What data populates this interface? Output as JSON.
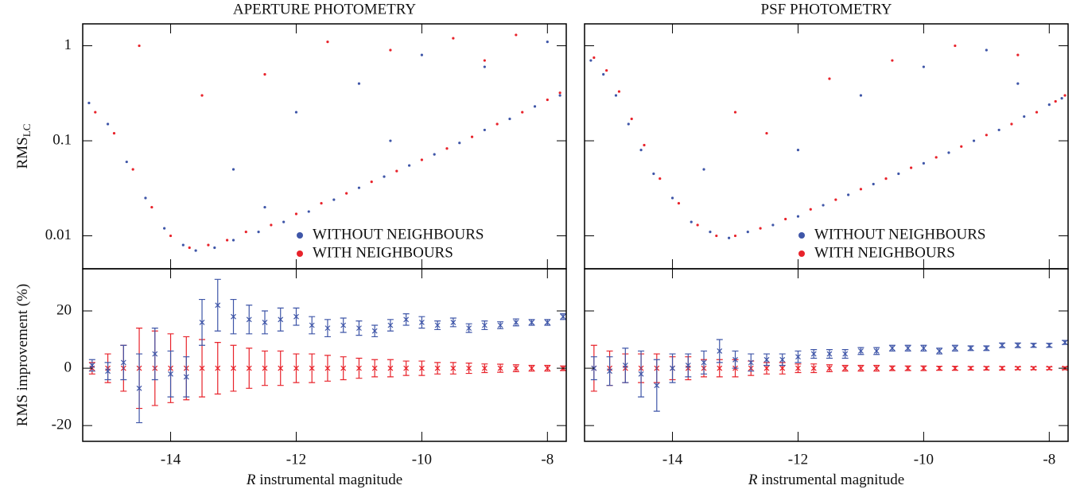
{
  "chart_data": [
    {
      "type": "scatter",
      "title": "APERTURE PHOTOMETRY",
      "y_label": "RMS",
      "y_label_subscript": "LC",
      "log_y": true,
      "xlim": [
        -15.4,
        -7.7
      ],
      "ylim": [
        0.0045,
        1.7
      ],
      "xticks": [
        -14,
        -12,
        -10,
        -8
      ],
      "yticks": [
        1,
        0.1,
        0.01
      ],
      "xtick_labels": false,
      "legend": "lower right",
      "series": [
        {
          "name": "WITHOUT NEIGHBOURS",
          "color": "#3f56a8",
          "x": [
            -15.3,
            -15.0,
            -14.7,
            -14.4,
            -14.1,
            -13.8,
            -13.6,
            -13.3,
            -13.0,
            -12.6,
            -12.2,
            -11.8,
            -11.4,
            -11.0,
            -10.6,
            -10.2,
            -9.8,
            -9.4,
            -9.0,
            -8.6,
            -8.2,
            -7.8,
            -13.0,
            -12.0,
            -11.0,
            -10.0,
            -9.0,
            -8.0,
            -12.5,
            -10.5
          ],
          "values": [
            0.25,
            0.15,
            0.06,
            0.025,
            0.012,
            0.008,
            0.007,
            0.0075,
            0.009,
            0.011,
            0.014,
            0.018,
            0.024,
            0.032,
            0.042,
            0.055,
            0.072,
            0.095,
            0.13,
            0.17,
            0.23,
            0.3,
            0.05,
            0.2,
            0.4,
            0.8,
            0.6,
            1.1,
            0.02,
            0.1
          ]
        },
        {
          "name": "WITH NEIGHBOURS",
          "color": "#e8232b",
          "x": [
            -15.2,
            -14.9,
            -14.6,
            -14.3,
            -14.0,
            -13.7,
            -13.4,
            -13.1,
            -12.8,
            -12.4,
            -12.0,
            -11.6,
            -11.2,
            -10.8,
            -10.4,
            -10.0,
            -9.6,
            -9.2,
            -8.8,
            -8.4,
            -8.0,
            -7.8,
            -14.5,
            -13.5,
            -12.5,
            -11.5,
            -10.5,
            -9.5,
            -8.5,
            -9.0
          ],
          "values": [
            0.2,
            0.12,
            0.05,
            0.02,
            0.01,
            0.0075,
            0.008,
            0.009,
            0.011,
            0.013,
            0.017,
            0.022,
            0.028,
            0.037,
            0.048,
            0.063,
            0.083,
            0.11,
            0.15,
            0.2,
            0.27,
            0.32,
            1.0,
            0.3,
            0.5,
            1.1,
            0.9,
            1.2,
            1.3,
            0.7
          ]
        }
      ]
    },
    {
      "type": "scatter",
      "title": "PSF PHOTOMETRY",
      "log_y": true,
      "xlim": [
        -15.4,
        -7.7
      ],
      "ylim": [
        0.0045,
        1.7
      ],
      "xticks": [
        -14,
        -12,
        -10,
        -8
      ],
      "yticks": [
        1,
        0.1,
        0.01
      ],
      "xtick_labels": false,
      "ytick_labels": false,
      "legend": "lower right",
      "series": [
        {
          "name": "WITHOUT NEIGHBOURS",
          "color": "#3f56a8",
          "x": [
            -15.3,
            -15.1,
            -14.9,
            -14.7,
            -14.5,
            -14.3,
            -14.0,
            -13.7,
            -13.4,
            -13.1,
            -12.8,
            -12.4,
            -12.0,
            -11.6,
            -11.2,
            -10.8,
            -10.4,
            -10.0,
            -9.6,
            -9.2,
            -8.8,
            -8.4,
            -8.0,
            -7.8,
            -12.0,
            -11.0,
            -10.0,
            -9.0,
            -13.5,
            -8.5
          ],
          "values": [
            0.7,
            0.5,
            0.3,
            0.15,
            0.08,
            0.045,
            0.025,
            0.014,
            0.011,
            0.0095,
            0.011,
            0.013,
            0.016,
            0.021,
            0.027,
            0.035,
            0.045,
            0.058,
            0.075,
            0.1,
            0.13,
            0.18,
            0.24,
            0.28,
            0.08,
            0.3,
            0.6,
            0.9,
            0.05,
            0.4
          ]
        },
        {
          "name": "WITH NEIGHBOURS",
          "color": "#e8232b",
          "x": [
            -15.25,
            -15.05,
            -14.85,
            -14.65,
            -14.45,
            -14.2,
            -13.9,
            -13.6,
            -13.3,
            -13.0,
            -12.6,
            -12.2,
            -11.8,
            -11.4,
            -11.0,
            -10.6,
            -10.2,
            -9.8,
            -9.4,
            -9.0,
            -8.6,
            -8.2,
            -7.9,
            -7.75,
            -12.5,
            -11.5,
            -10.5,
            -9.5,
            -8.5,
            -13.0
          ],
          "values": [
            0.75,
            0.55,
            0.33,
            0.17,
            0.09,
            0.04,
            0.022,
            0.013,
            0.01,
            0.01,
            0.012,
            0.015,
            0.019,
            0.024,
            0.031,
            0.04,
            0.052,
            0.067,
            0.087,
            0.115,
            0.15,
            0.2,
            0.26,
            0.3,
            0.12,
            0.45,
            0.7,
            1.0,
            0.8,
            0.2
          ]
        }
      ]
    },
    {
      "type": "errorbar",
      "y_label": "RMS improvement (%)",
      "x_label_var": "R",
      "x_label": "instrumental magnitude",
      "xlim": [
        -15.4,
        -7.7
      ],
      "ylim": [
        -25.5,
        34.7
      ],
      "xticks": [
        -14,
        -12,
        -10,
        -8
      ],
      "yticks": [
        -20,
        0,
        20
      ],
      "x": [
        -15.25,
        -15.0,
        -14.75,
        -14.5,
        -14.25,
        -14.0,
        -13.75,
        -13.5,
        -13.25,
        -13.0,
        -12.75,
        -12.5,
        -12.25,
        -12.0,
        -11.75,
        -11.5,
        -11.25,
        -11.0,
        -10.75,
        -10.5,
        -10.25,
        -10.0,
        -9.75,
        -9.5,
        -9.25,
        -9.0,
        -8.75,
        -8.5,
        -8.25,
        -8.0,
        -7.75
      ],
      "series": [
        {
          "color": "#e8232b",
          "values": [
            0,
            0,
            0,
            0,
            0,
            0,
            0,
            0,
            0,
            0,
            0,
            0,
            0,
            0,
            0,
            0,
            0,
            0,
            0,
            0,
            0,
            0,
            0,
            0,
            0,
            0,
            0,
            0,
            0,
            0,
            0
          ],
          "errors": [
            2,
            5,
            8,
            14,
            13,
            12,
            11,
            10,
            9,
            8,
            7,
            6,
            6,
            5,
            5,
            4.5,
            4,
            3.5,
            3,
            3,
            2.5,
            2.5,
            2,
            2,
            1.8,
            1.5,
            1.4,
            1.2,
            1,
            1,
            0.8
          ]
        },
        {
          "color": "#3f56a8",
          "values": [
            1,
            -1,
            2,
            -7,
            5,
            -2,
            -3,
            16,
            22,
            18,
            17,
            16,
            17,
            18,
            15,
            14,
            15,
            14,
            13,
            15,
            17,
            16,
            15,
            16,
            14,
            15,
            15,
            16,
            16,
            16,
            18
          ],
          "errors": [
            2,
            3,
            6,
            12,
            9,
            8,
            7,
            8,
            9,
            6,
            5,
            4,
            4,
            3,
            3,
            3,
            2.5,
            2.5,
            2,
            2,
            2,
            2,
            1.5,
            1.5,
            1.5,
            1.5,
            1.2,
            1.2,
            1,
            1,
            1
          ]
        }
      ]
    },
    {
      "type": "errorbar",
      "x_label_var": "R",
      "x_label": "instrumental magnitude",
      "ytick_labels": false,
      "xlim": [
        -15.4,
        -7.7
      ],
      "ylim": [
        -25.5,
        34.7
      ],
      "xticks": [
        -14,
        -12,
        -10,
        -8
      ],
      "yticks": [
        -20,
        0,
        20
      ],
      "x": [
        -15.25,
        -15.0,
        -14.75,
        -14.5,
        -14.25,
        -14.0,
        -13.75,
        -13.5,
        -13.25,
        -13.0,
        -12.75,
        -12.5,
        -12.25,
        -12.0,
        -11.75,
        -11.5,
        -11.25,
        -11.0,
        -10.75,
        -10.5,
        -10.25,
        -10.0,
        -9.75,
        -9.5,
        -9.25,
        -9.0,
        -8.75,
        -8.5,
        -8.25,
        -8.0,
        -7.75
      ],
      "series": [
        {
          "color": "#e8232b",
          "values": [
            0,
            0,
            0,
            0,
            0,
            0,
            0,
            0,
            0,
            0,
            0,
            0,
            0,
            0,
            0,
            0,
            0,
            0,
            0,
            0,
            0,
            0,
            0,
            0,
            0,
            0,
            0,
            0,
            0,
            0,
            0
          ],
          "errors": [
            8,
            6,
            5,
            5,
            5,
            4,
            4,
            3,
            3,
            3,
            2.5,
            2,
            2,
            1.5,
            1.5,
            1.2,
            1,
            1,
            1,
            0.8,
            0.8,
            0.8,
            0.7,
            0.7,
            0.6,
            0.6,
            0.6,
            0.5,
            0.5,
            0.5,
            0.5
          ]
        },
        {
          "color": "#3f56a8",
          "values": [
            0,
            -1,
            1,
            -2,
            -6,
            0,
            1,
            2,
            6,
            3,
            2,
            3,
            3,
            4,
            5,
            5,
            5,
            6,
            6,
            7,
            7,
            7,
            6,
            7,
            7,
            7,
            8,
            8,
            8,
            8,
            9
          ],
          "errors": [
            4,
            5,
            6,
            8,
            9,
            5,
            4,
            4,
            4,
            3,
            3,
            2,
            2,
            2,
            1.5,
            1.5,
            1.5,
            1.2,
            1.2,
            1,
            1,
            1,
            1,
            1,
            0.8,
            0.8,
            0.8,
            0.8,
            0.7,
            0.7,
            0.7
          ]
        }
      ]
    }
  ]
}
